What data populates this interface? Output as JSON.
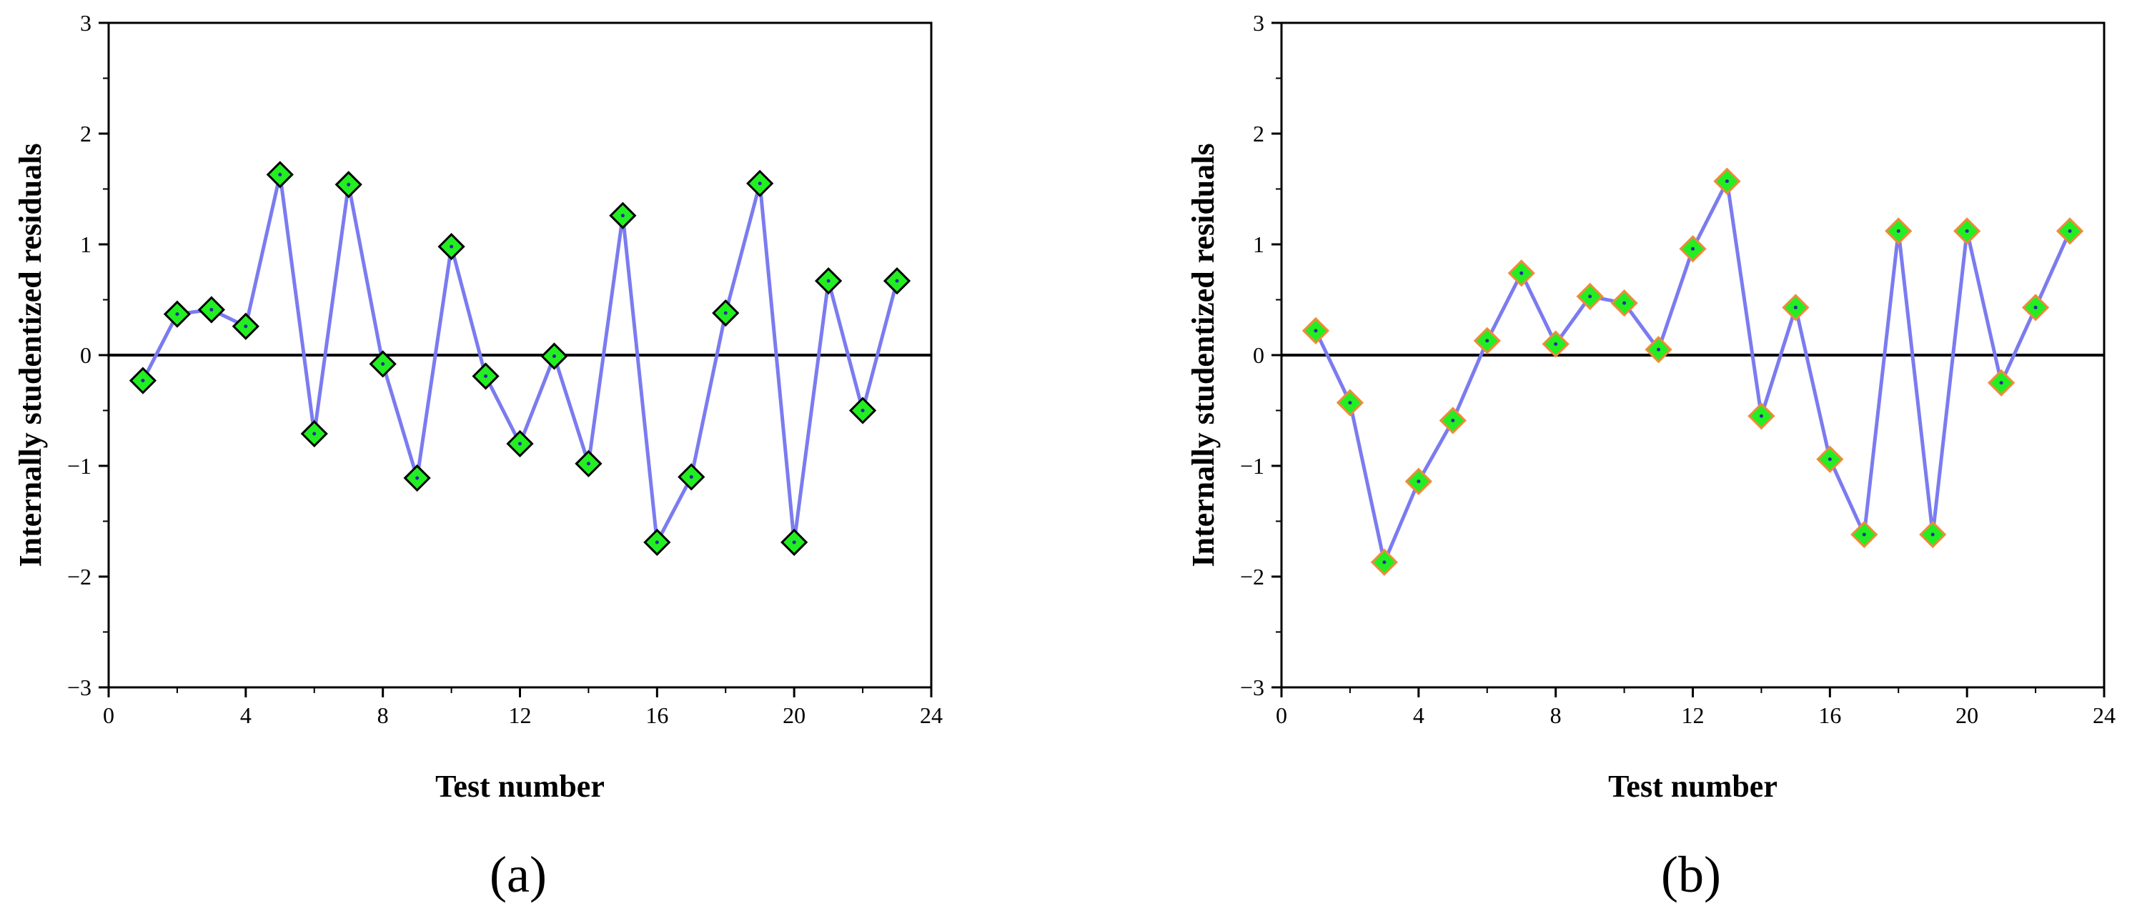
{
  "chart_data": [
    {
      "type": "line",
      "panel_label": "(a)",
      "xlabel": "Test number",
      "ylabel": "Internally studentized residuals",
      "xlim": [
        0,
        24
      ],
      "ylim": [
        -3,
        3
      ],
      "xticks": [
        0,
        4,
        8,
        12,
        16,
        20,
        24
      ],
      "yticks": [
        -3,
        -2,
        -1,
        0,
        1,
        2,
        3
      ],
      "ytick_labels": [
        "−3",
        "−2",
        "−1",
        "0",
        "1",
        "2",
        "3"
      ],
      "reference_line_y": 0,
      "grid": false,
      "line_color": "#7b7bf0",
      "marker": "diamond",
      "marker_fill": "#22ee22",
      "marker_edge": "#000000",
      "series": [
        {
          "name": "residuals",
          "x": [
            1,
            2,
            3,
            4,
            5,
            6,
            7,
            8,
            9,
            10,
            11,
            12,
            13,
            14,
            15,
            16,
            17,
            18,
            19,
            20,
            21,
            22,
            23
          ],
          "values": [
            -0.23,
            0.37,
            0.41,
            0.26,
            1.63,
            -0.71,
            1.54,
            -0.08,
            -1.11,
            0.98,
            -0.19,
            -0.8,
            -0.01,
            -0.98,
            1.26,
            -1.69,
            -1.1,
            0.38,
            1.55,
            -1.69,
            0.67,
            -0.5,
            0.67
          ]
        }
      ]
    },
    {
      "type": "line",
      "panel_label": "(b)",
      "xlabel": "Test number",
      "ylabel": "Internally studentized residuals",
      "xlim": [
        0,
        24
      ],
      "ylim": [
        -3,
        3
      ],
      "xticks": [
        0,
        4,
        8,
        12,
        16,
        20,
        24
      ],
      "yticks": [
        -3,
        -2,
        -1,
        0,
        1,
        2,
        3
      ],
      "ytick_labels": [
        "−3",
        "−2",
        "−1",
        "0",
        "1",
        "2",
        "3"
      ],
      "reference_line_y": 0,
      "grid": false,
      "line_color": "#7b7bf0",
      "marker": "diamond",
      "marker_fill": "#22ee22",
      "marker_edge": "#f08a3a",
      "series": [
        {
          "name": "residuals",
          "x": [
            1,
            2,
            3,
            4,
            5,
            6,
            7,
            8,
            9,
            10,
            11,
            12,
            13,
            14,
            15,
            16,
            17,
            18,
            19,
            20,
            21,
            22,
            23
          ],
          "values": [
            0.22,
            -0.43,
            -1.87,
            -1.14,
            -0.59,
            0.13,
            0.74,
            0.1,
            0.53,
            0.47,
            0.05,
            0.96,
            1.57,
            -0.55,
            0.43,
            -0.94,
            -1.62,
            1.12,
            -1.62,
            1.12,
            -0.25,
            0.43,
            1.12
          ]
        }
      ]
    }
  ]
}
